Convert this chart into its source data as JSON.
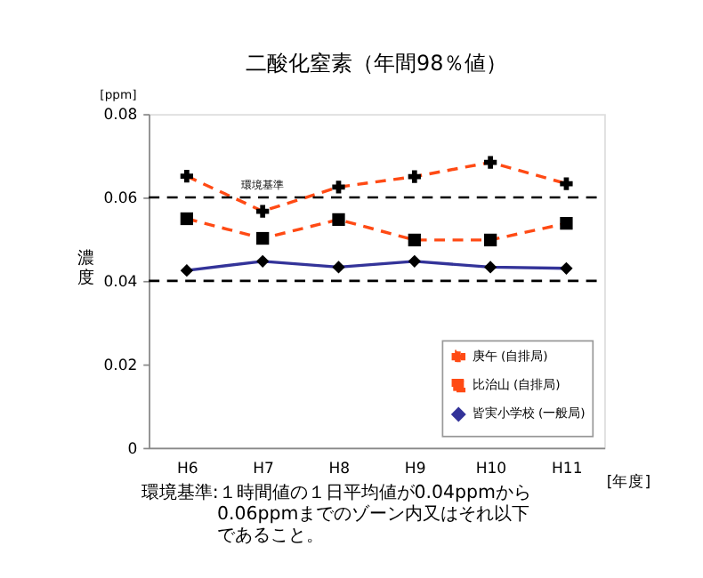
{
  "chart_data": {
    "type": "line",
    "title": "二酸化窒素（年間98％値）",
    "categories": [
      "H6",
      "H7",
      "H8",
      "H9",
      "H10",
      "H11"
    ],
    "xlabel": "[年度]",
    "ylabel": "濃度",
    "series": [
      {
        "name": "庚午 (自排局)",
        "color": "#ff4a14",
        "line_style": "dashed",
        "marker": "cross",
        "values": [
          0.0651,
          0.0567,
          0.0625,
          0.065,
          0.0684,
          0.0633
        ]
      },
      {
        "name": "比治山 (自排局)",
        "color": "#ff4a14",
        "line_style": "dashed",
        "marker": "square",
        "values": [
          0.0549,
          0.0502,
          0.0547,
          0.0498,
          0.0498,
          0.0538
        ]
      },
      {
        "name": "皆実小学校 (一般局)",
        "color": "#333399",
        "line_style": "solid",
        "marker": "diamond",
        "values": [
          0.0425,
          0.0447,
          0.0433,
          0.0447,
          0.0433,
          0.043
        ]
      }
    ],
    "ylim": [
      0,
      0.08
    ],
    "yticks": [
      0,
      0.02,
      0.04,
      0.06,
      0.08
    ],
    "ref_lines": [
      {
        "axis": "y",
        "value": 0.06,
        "label": "環境基準",
        "color": "#000000",
        "line_style": "dashed"
      },
      {
        "axis": "y",
        "value": 0.04,
        "label": null,
        "color": "#000000",
        "line_style": "dashed"
      }
    ],
    "legend": "bottom right",
    "grid": false,
    "annotations": [
      "[ppm]",
      "環境基準:１時間値の１日平均値が0.04ppmから0.06ppmまでのゾーン内又はそれ以下であること。"
    ]
  }
}
